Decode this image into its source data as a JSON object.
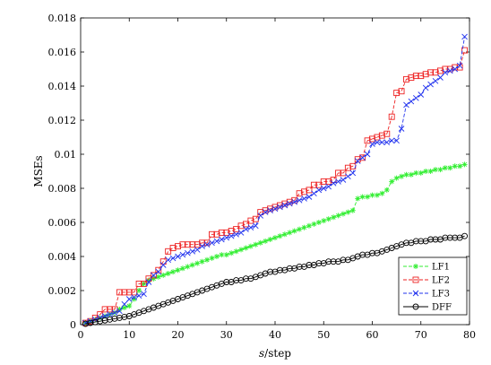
{
  "chart_data": {
    "type": "line",
    "xlabel_italic": "s",
    "xlabel_rest": "/step",
    "ylabel": "MSEs",
    "xlim": [
      0,
      80
    ],
    "ylim": [
      0,
      0.018
    ],
    "xticks": [
      0,
      10,
      20,
      30,
      40,
      50,
      60,
      70,
      80
    ],
    "xtick_labels": [
      "0",
      "10",
      "20",
      "30",
      "40",
      "50",
      "60",
      "70",
      "80"
    ],
    "yticks": [
      0,
      0.002,
      0.004,
      0.006,
      0.008,
      0.01,
      0.012,
      0.014,
      0.016,
      0.018
    ],
    "ytick_labels": [
      "0",
      "0.002",
      "0.004",
      "0.006",
      "0.008",
      "0.01",
      "0.012",
      "0.014",
      "0.016",
      "0.018"
    ],
    "grid": false,
    "legend_position": "bottom-right",
    "x": [
      1,
      2,
      3,
      4,
      5,
      6,
      7,
      8,
      9,
      10,
      11,
      12,
      13,
      14,
      15,
      16,
      17,
      18,
      19,
      20,
      21,
      22,
      23,
      24,
      25,
      26,
      27,
      28,
      29,
      30,
      31,
      32,
      33,
      34,
      35,
      36,
      37,
      38,
      39,
      40,
      41,
      42,
      43,
      44,
      45,
      46,
      47,
      48,
      49,
      50,
      51,
      52,
      53,
      54,
      55,
      56,
      57,
      58,
      59,
      60,
      61,
      62,
      63,
      64,
      65,
      66,
      67,
      68,
      69,
      70,
      71,
      72,
      73,
      74,
      75,
      76,
      77,
      78,
      79
    ],
    "series": [
      {
        "name": "LF1",
        "color": "#33ee33",
        "marker": "star",
        "values": [
          0.0001,
          0.0002,
          0.0003,
          0.0004,
          0.0005,
          0.0006,
          0.0007,
          0.0009,
          0.001,
          0.0011,
          0.0015,
          0.002,
          0.0024,
          0.0026,
          0.0027,
          0.0028,
          0.0029,
          0.003,
          0.0031,
          0.0032,
          0.0033,
          0.0034,
          0.0035,
          0.0036,
          0.0037,
          0.0038,
          0.0039,
          0.004,
          0.0041,
          0.0041,
          0.0042,
          0.0043,
          0.0044,
          0.0045,
          0.0046,
          0.0047,
          0.0048,
          0.0049,
          0.005,
          0.0051,
          0.0052,
          0.0053,
          0.0054,
          0.0055,
          0.0056,
          0.0057,
          0.0058,
          0.0059,
          0.006,
          0.0061,
          0.0062,
          0.0063,
          0.0064,
          0.0065,
          0.0066,
          0.0067,
          0.0074,
          0.0075,
          0.0075,
          0.0076,
          0.0076,
          0.0077,
          0.0079,
          0.0084,
          0.0086,
          0.0087,
          0.0088,
          0.0088,
          0.0089,
          0.0089,
          0.009,
          0.009,
          0.0091,
          0.0091,
          0.0092,
          0.0092,
          0.0093,
          0.0093,
          0.0094
        ]
      },
      {
        "name": "LF2",
        "color": "#ee2222",
        "marker": "square",
        "values": [
          0.0001,
          0.0002,
          0.0004,
          0.0006,
          0.0009,
          0.0009,
          0.0009,
          0.0019,
          0.0019,
          0.0019,
          0.0019,
          0.0024,
          0.0024,
          0.0027,
          0.0029,
          0.0032,
          0.0037,
          0.0043,
          0.0045,
          0.0046,
          0.0047,
          0.0047,
          0.0047,
          0.0047,
          0.0048,
          0.0048,
          0.0053,
          0.0053,
          0.0054,
          0.0054,
          0.0055,
          0.0056,
          0.0058,
          0.0059,
          0.0061,
          0.0062,
          0.0066,
          0.0067,
          0.0068,
          0.0069,
          0.007,
          0.0071,
          0.0072,
          0.0073,
          0.0077,
          0.0078,
          0.0079,
          0.0082,
          0.0082,
          0.0084,
          0.0084,
          0.0085,
          0.0089,
          0.0089,
          0.0092,
          0.0093,
          0.0097,
          0.0098,
          0.0108,
          0.0109,
          0.011,
          0.0111,
          0.0112,
          0.0122,
          0.0136,
          0.0137,
          0.0144,
          0.0145,
          0.0146,
          0.0146,
          0.0147,
          0.0148,
          0.0148,
          0.0149,
          0.015,
          0.015,
          0.0151,
          0.0151,
          0.0161
        ]
      },
      {
        "name": "LF3",
        "color": "#2233ee",
        "marker": "x",
        "values": [
          0.0001,
          0.0002,
          0.0003,
          0.0004,
          0.0005,
          0.0006,
          0.0007,
          0.0008,
          0.0012,
          0.0015,
          0.0016,
          0.0017,
          0.0018,
          0.0025,
          0.0029,
          0.0031,
          0.0035,
          0.0038,
          0.0039,
          0.004,
          0.0041,
          0.0042,
          0.0043,
          0.0044,
          0.0046,
          0.0047,
          0.0048,
          0.0049,
          0.005,
          0.0051,
          0.0052,
          0.0053,
          0.0054,
          0.0056,
          0.0057,
          0.0058,
          0.0064,
          0.0066,
          0.0067,
          0.0068,
          0.0069,
          0.007,
          0.0071,
          0.0072,
          0.0073,
          0.0074,
          0.0075,
          0.0077,
          0.0079,
          0.008,
          0.0081,
          0.0083,
          0.0084,
          0.0085,
          0.0087,
          0.0089,
          0.0096,
          0.0098,
          0.01,
          0.0106,
          0.0107,
          0.0107,
          0.0107,
          0.0108,
          0.0108,
          0.0115,
          0.0129,
          0.0131,
          0.0133,
          0.0135,
          0.0139,
          0.0141,
          0.0143,
          0.0145,
          0.0148,
          0.0149,
          0.015,
          0.0152,
          0.0169
        ]
      },
      {
        "name": "DFF",
        "color": "#000000",
        "marker": "circle",
        "values": [
          5e-05,
          0.0001,
          0.00015,
          0.0002,
          0.00025,
          0.0003,
          0.00035,
          0.0004,
          0.00045,
          0.0005,
          0.0006,
          0.0007,
          0.0008,
          0.0009,
          0.001,
          0.0011,
          0.0012,
          0.0013,
          0.0014,
          0.0015,
          0.0016,
          0.0017,
          0.0018,
          0.0019,
          0.002,
          0.0021,
          0.0022,
          0.0023,
          0.0024,
          0.0025,
          0.0025,
          0.0026,
          0.0026,
          0.0027,
          0.0027,
          0.0028,
          0.0029,
          0.003,
          0.0031,
          0.0031,
          0.0032,
          0.0032,
          0.0033,
          0.0033,
          0.0034,
          0.0034,
          0.0035,
          0.0035,
          0.0036,
          0.0036,
          0.0037,
          0.0037,
          0.0037,
          0.0038,
          0.0038,
          0.0039,
          0.004,
          0.0041,
          0.0041,
          0.0042,
          0.0042,
          0.0043,
          0.0044,
          0.0045,
          0.0046,
          0.0047,
          0.0048,
          0.0048,
          0.0049,
          0.0049,
          0.0049,
          0.005,
          0.005,
          0.005,
          0.0051,
          0.0051,
          0.0051,
          0.0051,
          0.0052
        ]
      }
    ]
  }
}
